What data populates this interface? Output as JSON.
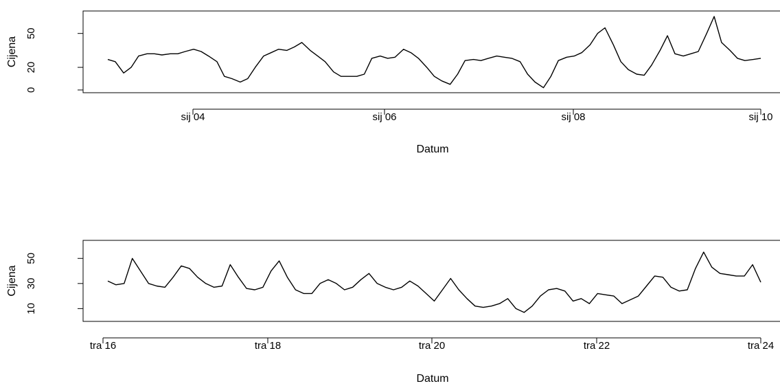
{
  "chart_data": [
    {
      "type": "line",
      "xlabel": "Datum",
      "ylabel": "Cijena",
      "x_tick_labels": [
        "sij 04",
        "sij 06",
        "sij 08",
        "sij 10"
      ],
      "y_ticks": [
        0,
        20,
        50
      ],
      "xlim": [
        0,
        7
      ],
      "ylim": [
        0,
        65
      ],
      "grid": false,
      "series": [
        {
          "x": [
            0.0,
            0.08,
            0.17,
            0.25,
            0.33,
            0.42,
            0.5,
            0.58,
            0.67,
            0.75,
            0.83,
            0.92,
            1.0,
            1.08,
            1.17,
            1.25,
            1.33,
            1.42,
            1.5,
            1.58,
            1.67,
            1.75,
            1.83,
            1.92,
            2.0,
            2.08,
            2.17,
            2.25,
            2.33,
            2.42,
            2.5,
            2.58,
            2.67,
            2.75,
            2.83,
            2.92,
            3.0,
            3.08,
            3.17,
            3.25,
            3.33,
            3.42,
            3.5,
            3.58,
            3.67,
            3.75,
            3.83,
            3.92,
            4.0,
            4.08,
            4.17,
            4.25,
            4.33,
            4.42,
            4.5,
            4.58,
            4.67,
            4.75,
            4.83,
            4.92,
            5.0,
            5.08,
            5.17,
            5.25,
            5.33,
            5.42,
            5.5,
            5.58,
            5.67,
            5.75,
            5.83,
            5.92,
            6.0,
            6.08,
            6.17,
            6.25,
            6.33,
            6.42,
            6.5,
            6.58,
            6.67,
            6.75,
            6.83,
            6.92,
            7.0
          ],
          "values": [
            27,
            25,
            15,
            20,
            30,
            32,
            32,
            31,
            32,
            32,
            34,
            36,
            34,
            30,
            25,
            12,
            10,
            7,
            10,
            20,
            30,
            33,
            36,
            35,
            38,
            42,
            35,
            30,
            25,
            16,
            12,
            12,
            12,
            14,
            28,
            30,
            28,
            29,
            36,
            33,
            28,
            20,
            12,
            8,
            5,
            14,
            26,
            27,
            26,
            28,
            30,
            29,
            28,
            25,
            14,
            7,
            2,
            12,
            26,
            29,
            30,
            33,
            40,
            50,
            55,
            40,
            25,
            18,
            14,
            13,
            22,
            35,
            48,
            32,
            30,
            32,
            34,
            50,
            65,
            42,
            35,
            28,
            26,
            27,
            28
          ]
        }
      ]
    },
    {
      "type": "line",
      "xlabel": "Datum",
      "ylabel": "Cijena",
      "x_tick_labels": [
        "tra 16",
        "tra 18",
        "tra 20",
        "tra 22",
        "tra 24"
      ],
      "y_ticks": [
        10,
        30,
        50
      ],
      "xlim": [
        0,
        8
      ],
      "ylim": [
        2,
        60
      ],
      "grid": false,
      "series": [
        {
          "x": [
            0.0,
            0.1,
            0.2,
            0.3,
            0.4,
            0.5,
            0.6,
            0.7,
            0.8,
            0.9,
            1.0,
            1.1,
            1.2,
            1.3,
            1.4,
            1.5,
            1.6,
            1.7,
            1.8,
            1.9,
            2.0,
            2.1,
            2.2,
            2.3,
            2.4,
            2.5,
            2.6,
            2.7,
            2.8,
            2.9,
            3.0,
            3.1,
            3.2,
            3.3,
            3.4,
            3.5,
            3.6,
            3.7,
            3.8,
            3.9,
            4.0,
            4.1,
            4.2,
            4.3,
            4.4,
            4.5,
            4.6,
            4.7,
            4.8,
            4.9,
            5.0,
            5.1,
            5.2,
            5.3,
            5.4,
            5.5,
            5.6,
            5.7,
            5.8,
            5.9,
            6.0,
            6.1,
            6.2,
            6.3,
            6.4,
            6.5,
            6.6,
            6.7,
            6.8,
            6.9,
            7.0,
            7.1,
            7.2,
            7.3,
            7.4,
            7.5,
            7.6,
            7.7,
            7.8,
            7.9,
            8.0
          ],
          "values": [
            32,
            29,
            30,
            50,
            40,
            30,
            28,
            27,
            35,
            44,
            42,
            35,
            30,
            27,
            28,
            45,
            35,
            26,
            25,
            27,
            40,
            48,
            35,
            25,
            22,
            22,
            30,
            33,
            30,
            25,
            27,
            33,
            38,
            30,
            27,
            25,
            27,
            32,
            28,
            22,
            16,
            25,
            34,
            25,
            18,
            12,
            11,
            12,
            14,
            18,
            10,
            7,
            12,
            20,
            25,
            26,
            24,
            16,
            18,
            14,
            22,
            21,
            20,
            14,
            17,
            20,
            28,
            36,
            35,
            27,
            24,
            25,
            42,
            55,
            43,
            38,
            37,
            36,
            36,
            45,
            31
          ]
        }
      ]
    }
  ]
}
